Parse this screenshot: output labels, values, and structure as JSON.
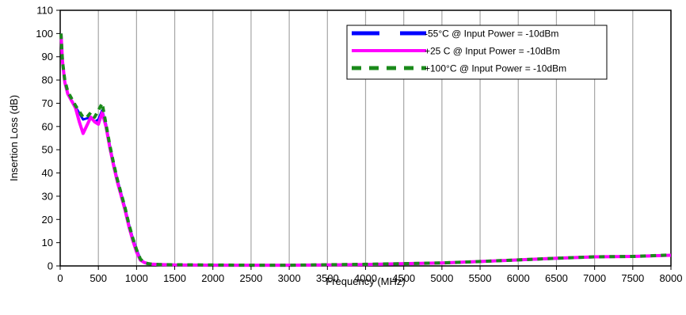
{
  "chart_data": {
    "type": "line",
    "title": "",
    "xlabel": "Frequency (MHz)",
    "ylabel": "Insertion Loss (dB)",
    "xlim": [
      0,
      8000
    ],
    "ylim": [
      0,
      110
    ],
    "xticks": [
      0,
      500,
      1000,
      1500,
      2000,
      2500,
      3000,
      3500,
      4000,
      4500,
      5000,
      5500,
      6000,
      6500,
      7000,
      7500,
      8000
    ],
    "yticks": [
      0,
      10,
      20,
      30,
      40,
      50,
      60,
      70,
      80,
      90,
      100,
      110
    ],
    "grid": "vertical",
    "legend_position": "top-right",
    "series": [
      {
        "name": "-55°C @ Input Power = -10dBm",
        "color": "#0000ff",
        "style": "solid",
        "x": [
          10,
          30,
          60,
          100,
          200,
          300,
          400,
          450,
          500,
          550,
          600,
          650,
          700,
          750,
          800,
          850,
          900,
          950,
          1000,
          1050,
          1100,
          1150,
          1200,
          1300,
          1500,
          2000,
          2500,
          3000,
          3500,
          4000,
          4500,
          5000,
          5500,
          6000,
          6500,
          7000,
          7500,
          8000
        ],
        "values": [
          100,
          88,
          79,
          74,
          68.5,
          63,
          64,
          62,
          63,
          67,
          61,
          52,
          44,
          37,
          31,
          25,
          18,
          12,
          7,
          3,
          1.5,
          1,
          0.8,
          0.6,
          0.5,
          0.4,
          0.3,
          0.3,
          0.4,
          0.6,
          0.9,
          1.2,
          1.8,
          2.5,
          3.2,
          3.8,
          4.0,
          4.5
        ]
      },
      {
        "name": "+25 C @ Input Power = -10dBm",
        "color": "#ff00ff",
        "style": "solid",
        "x": [
          10,
          30,
          60,
          100,
          200,
          250,
          300,
          400,
          450,
          500,
          550,
          600,
          650,
          700,
          750,
          800,
          850,
          900,
          950,
          1000,
          1050,
          1100,
          1150,
          1200,
          1300,
          1500,
          2000,
          2500,
          3000,
          3500,
          4000,
          4500,
          5000,
          5500,
          6000,
          6500,
          7000,
          7500,
          8000
        ],
        "values": [
          100,
          88,
          79,
          74,
          68,
          62,
          57,
          64,
          62,
          61,
          66,
          60,
          51,
          43,
          36,
          30,
          24,
          17,
          11,
          6,
          2.5,
          1.5,
          1,
          0.8,
          0.6,
          0.4,
          0.3,
          0.3,
          0.3,
          0.4,
          0.6,
          1.0,
          1.3,
          1.9,
          2.6,
          3.3,
          3.9,
          4.1,
          4.6
        ]
      },
      {
        "name": "+100°C @ Input Power = -10dBm",
        "color": "#1a8a1a",
        "style": "dashed",
        "x": [
          10,
          30,
          60,
          100,
          200,
          300,
          350,
          400,
          450,
          500,
          550,
          600,
          650,
          700,
          750,
          800,
          850,
          900,
          950,
          1000,
          1050,
          1100,
          1150,
          1200,
          1300,
          1500,
          2000,
          2500,
          3000,
          3500,
          4000,
          4500,
          5000,
          5500,
          6000,
          6500,
          7000,
          7500,
          8000
        ],
        "values": [
          100,
          88,
          80,
          75,
          69,
          64,
          64,
          66,
          64,
          67,
          70,
          61,
          52,
          44,
          37,
          31,
          25,
          18,
          12,
          7,
          3,
          1.5,
          1,
          0.8,
          0.6,
          0.5,
          0.4,
          0.3,
          0.3,
          0.5,
          0.7,
          1.0,
          1.3,
          1.9,
          2.6,
          3.3,
          3.9,
          4.1,
          4.7
        ]
      }
    ]
  }
}
